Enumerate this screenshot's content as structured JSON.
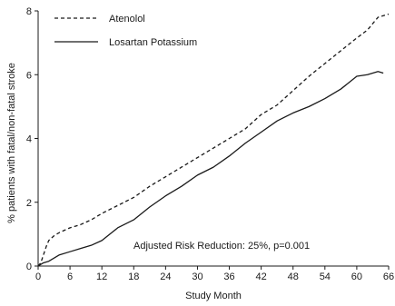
{
  "chart_data": {
    "type": "line",
    "title": "",
    "xlabel": "Study Month",
    "ylabel": "% patients with fatal/non-fatal stroke",
    "xlim": [
      0,
      66
    ],
    "ylim": [
      0,
      8
    ],
    "x_ticks": [
      0,
      6,
      12,
      18,
      24,
      30,
      36,
      42,
      48,
      54,
      60,
      66
    ],
    "y_ticks": [
      0,
      2,
      4,
      6,
      8
    ],
    "grid": false,
    "legend_position": "top-left",
    "annotation": "Adjusted Risk Reduction: 25%, p=0.001",
    "series": [
      {
        "name": "Atenolol",
        "line_style": "dashed",
        "color": "#1a1a1a",
        "points": [
          [
            0,
            0
          ],
          [
            0.5,
            0.1
          ],
          [
            1,
            0.35
          ],
          [
            1.5,
            0.6
          ],
          [
            2,
            0.8
          ],
          [
            3,
            0.95
          ],
          [
            4,
            1.05
          ],
          [
            6,
            1.2
          ],
          [
            8,
            1.3
          ],
          [
            10,
            1.45
          ],
          [
            12,
            1.65
          ],
          [
            15,
            1.9
          ],
          [
            18,
            2.15
          ],
          [
            21,
            2.5
          ],
          [
            24,
            2.8
          ],
          [
            27,
            3.1
          ],
          [
            30,
            3.4
          ],
          [
            33,
            3.7
          ],
          [
            36,
            4.0
          ],
          [
            39,
            4.3
          ],
          [
            42,
            4.75
          ],
          [
            45,
            5.05
          ],
          [
            48,
            5.5
          ],
          [
            51,
            5.95
          ],
          [
            54,
            6.35
          ],
          [
            57,
            6.75
          ],
          [
            60,
            7.15
          ],
          [
            62,
            7.4
          ],
          [
            64,
            7.8
          ],
          [
            66,
            7.9
          ]
        ]
      },
      {
        "name": "Losartan Potassium",
        "line_style": "solid",
        "color": "#1a1a1a",
        "points": [
          [
            0,
            0
          ],
          [
            0.5,
            0.05
          ],
          [
            1,
            0.1
          ],
          [
            2,
            0.15
          ],
          [
            3,
            0.25
          ],
          [
            4,
            0.35
          ],
          [
            6,
            0.45
          ],
          [
            8,
            0.55
          ],
          [
            10,
            0.65
          ],
          [
            12,
            0.8
          ],
          [
            15,
            1.2
          ],
          [
            18,
            1.45
          ],
          [
            21,
            1.85
          ],
          [
            24,
            2.2
          ],
          [
            27,
            2.5
          ],
          [
            30,
            2.85
          ],
          [
            33,
            3.1
          ],
          [
            36,
            3.45
          ],
          [
            39,
            3.85
          ],
          [
            42,
            4.2
          ],
          [
            45,
            4.55
          ],
          [
            48,
            4.8
          ],
          [
            51,
            5.0
          ],
          [
            54,
            5.25
          ],
          [
            57,
            5.55
          ],
          [
            60,
            5.95
          ],
          [
            62,
            6.0
          ],
          [
            64,
            6.1
          ],
          [
            65,
            6.05
          ]
        ]
      }
    ]
  }
}
